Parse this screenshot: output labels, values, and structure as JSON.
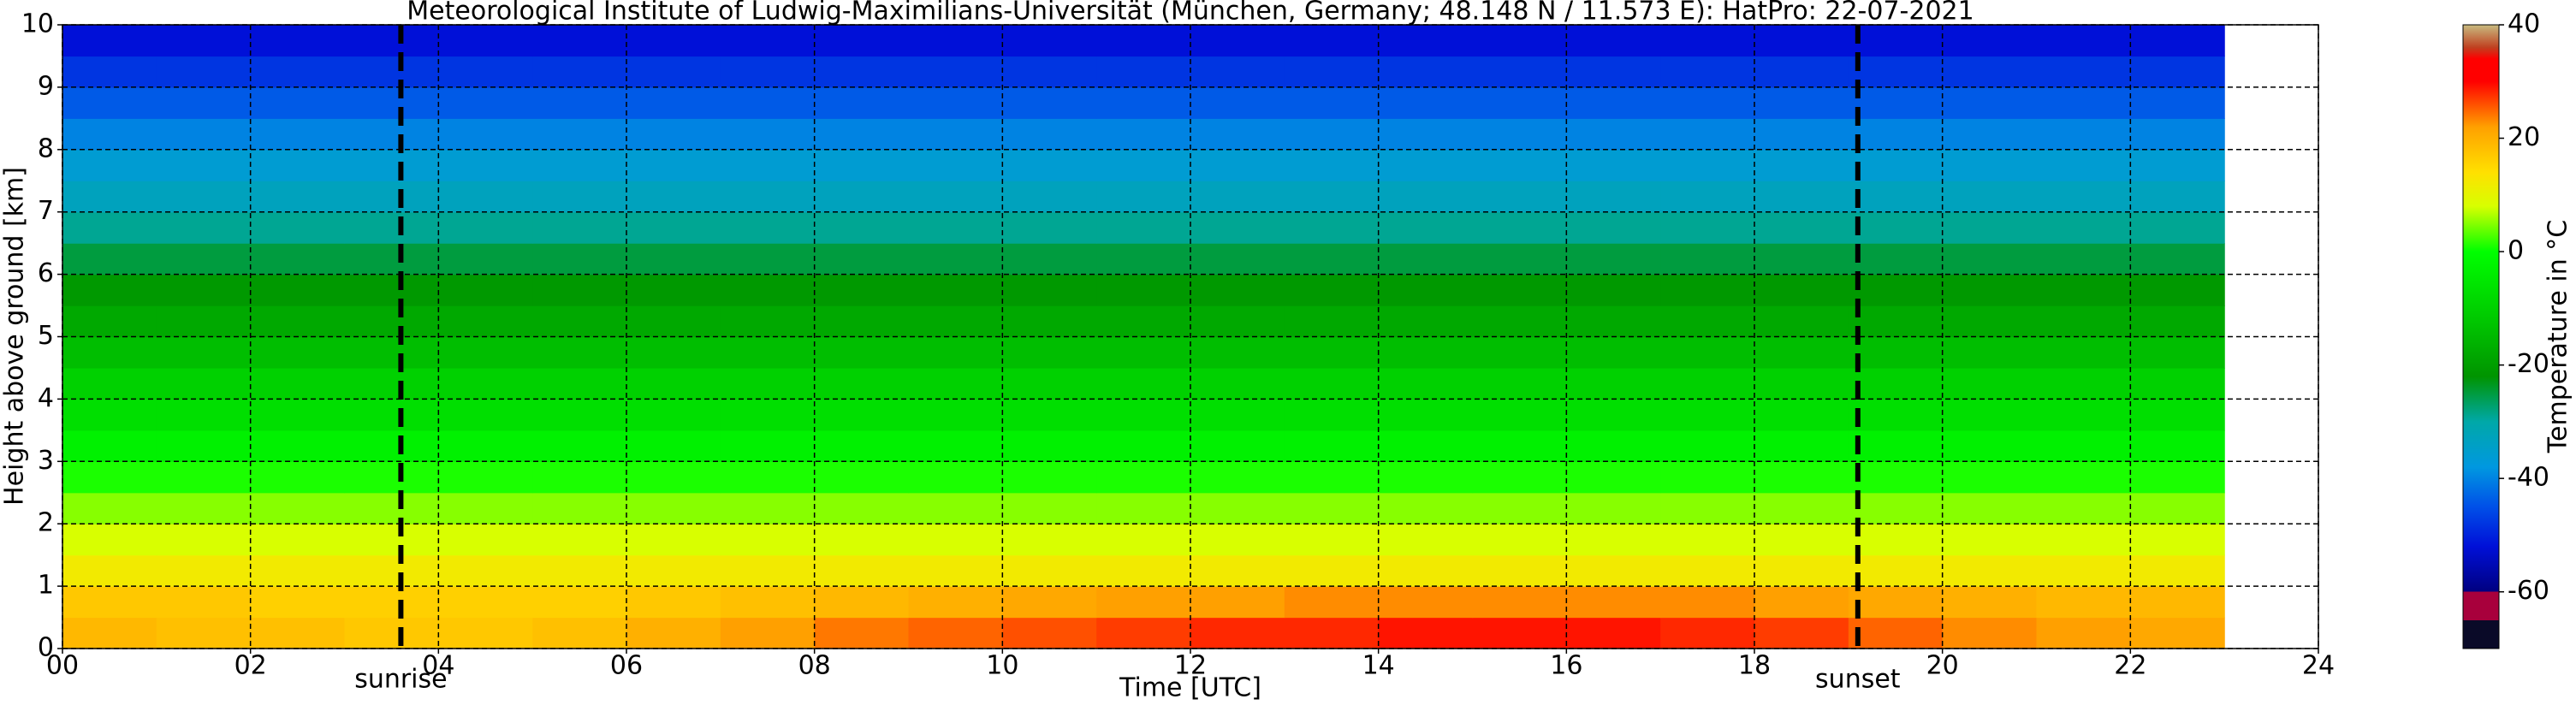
{
  "chart_data": {
    "type": "heatmap",
    "title": "Meteorological Institute of Ludwig-Maximilians-Universität (München, Germany; 48.148 N / 11.573 E):    HatPro: 22-07-2021",
    "xlabel": "Time [UTC]",
    "ylabel": "Height above ground [km]",
    "colorbar_label": "Temperature in °C",
    "xlim": [
      0,
      24
    ],
    "xticks": [
      {
        "value": 0,
        "label": "00"
      },
      {
        "value": 2,
        "label": "02"
      },
      {
        "value": 4,
        "label": "04"
      },
      {
        "value": 6,
        "label": "06"
      },
      {
        "value": 8,
        "label": "08"
      },
      10,
      12,
      14,
      16,
      18,
      20,
      22,
      24
    ],
    "ylim": [
      0,
      10
    ],
    "yticks": [
      0,
      1,
      2,
      3,
      4,
      5,
      6,
      7,
      8,
      9,
      10
    ],
    "clim": [
      -70,
      40
    ],
    "cticks": [
      -60,
      -40,
      -20,
      0,
      20,
      40
    ],
    "grid": true,
    "colorscale": [
      {
        "value": -70,
        "color": "#0a0a28"
      },
      {
        "value": -65,
        "color": "#0a0a28"
      },
      {
        "value": -65,
        "color": "#a8003c"
      },
      {
        "value": -60,
        "color": "#a8003c"
      },
      {
        "value": -60,
        "color": "#000080"
      },
      {
        "value": -52,
        "color": "#0010d8"
      },
      {
        "value": -45,
        "color": "#0050e8"
      },
      {
        "value": -38,
        "color": "#0098e0"
      },
      {
        "value": -30,
        "color": "#00a8a8"
      },
      {
        "value": -22,
        "color": "#009400"
      },
      {
        "value": -12,
        "color": "#00c800"
      },
      {
        "value": 0,
        "color": "#00ff00"
      },
      {
        "value": 8,
        "color": "#d8ff00"
      },
      {
        "value": 14,
        "color": "#ffe000"
      },
      {
        "value": 22,
        "color": "#ffa000"
      },
      {
        "value": 30,
        "color": "#ff0000"
      },
      {
        "value": 34,
        "color": "#ff0000"
      },
      {
        "value": 36,
        "color": "#c04020"
      },
      {
        "value": 40,
        "color": "#c8bc80"
      }
    ],
    "annotations": [
      {
        "label": "sunrise",
        "x": 3.6
      },
      {
        "label": "sunset",
        "x": 19.1
      }
    ],
    "x_edges": [
      0,
      1,
      2,
      3,
      4,
      5,
      6,
      7,
      8,
      9,
      10,
      11,
      12,
      13,
      14,
      15,
      16,
      17,
      18,
      19,
      20,
      21,
      22,
      23
    ],
    "y_edges": [
      0,
      0.5,
      1,
      1.5,
      2,
      2.5,
      3,
      3.5,
      4,
      4.5,
      5,
      5.5,
      6,
      6.5,
      7,
      7.5,
      8,
      8.5,
      9,
      9.5,
      10
    ],
    "values": [
      [
        19,
        18,
        18,
        17,
        17,
        18,
        20,
        22,
        24,
        25,
        26,
        27,
        28,
        28,
        29,
        29,
        29,
        28,
        27,
        25,
        23,
        22,
        21
      ],
      [
        17,
        17,
        16,
        16,
        16,
        16,
        17,
        18,
        19,
        20,
        21,
        22,
        22,
        23,
        23,
        23,
        23,
        23,
        22,
        21,
        20,
        19,
        19
      ],
      [
        12,
        12,
        12,
        12,
        12,
        12,
        12,
        12,
        12,
        12,
        12,
        12,
        12,
        12,
        12,
        12,
        12,
        12,
        12,
        12,
        12,
        12,
        12
      ],
      [
        8,
        8,
        8,
        8,
        8,
        8,
        8,
        8,
        8,
        8,
        8,
        8,
        8,
        8,
        8,
        8,
        8,
        8,
        8,
        8,
        8,
        8,
        8
      ],
      [
        5,
        5,
        5,
        5,
        5,
        5,
        5,
        5,
        5,
        5,
        5,
        5,
        5,
        5,
        5,
        5,
        5,
        5,
        5,
        5,
        5,
        5,
        5
      ],
      [
        1,
        1,
        1,
        1,
        1,
        1,
        1,
        1,
        1,
        1,
        1,
        1,
        1,
        1,
        1,
        1,
        1,
        1,
        1,
        1,
        1,
        1,
        1
      ],
      [
        -3,
        -3,
        -3,
        -3,
        -3,
        -3,
        -3,
        -3,
        -3,
        -3,
        -3,
        -3,
        -3,
        -3,
        -3,
        -3,
        -3,
        -3,
        -3,
        -3,
        -3,
        -3,
        -3
      ],
      [
        -7,
        -7,
        -7,
        -7,
        -7,
        -7,
        -7,
        -7,
        -7,
        -7,
        -7,
        -7,
        -7,
        -7,
        -7,
        -7,
        -7,
        -7,
        -7,
        -7,
        -7,
        -7,
        -7
      ],
      [
        -10,
        -10,
        -10,
        -10,
        -10,
        -10,
        -10,
        -10,
        -10,
        -10,
        -10,
        -10,
        -10,
        -10,
        -10,
        -10,
        -10,
        -10,
        -10,
        -10,
        -10,
        -10,
        -10
      ],
      [
        -14,
        -14,
        -14,
        -14,
        -14,
        -14,
        -14,
        -14,
        -14,
        -14,
        -14,
        -14,
        -14,
        -14,
        -14,
        -14,
        -14,
        -14,
        -14,
        -14,
        -14,
        -14,
        -14
      ],
      [
        -18,
        -18,
        -18,
        -18,
        -18,
        -18,
        -18,
        -18,
        -18,
        -18,
        -18,
        -18,
        -18,
        -18,
        -18,
        -18,
        -18,
        -18,
        -18,
        -18,
        -18,
        -18,
        -18
      ],
      [
        -21,
        -21,
        -21,
        -21,
        -21,
        -21,
        -21,
        -21,
        -21,
        -21,
        -21,
        -21,
        -21,
        -21,
        -21,
        -21,
        -21,
        -21,
        -21,
        -21,
        -21,
        -21,
        -21
      ],
      [
        -25,
        -25,
        -25,
        -25,
        -25,
        -25,
        -25,
        -25,
        -25,
        -25,
        -25,
        -25,
        -25,
        -25,
        -25,
        -25,
        -25,
        -25,
        -25,
        -25,
        -25,
        -25,
        -25
      ],
      [
        -29,
        -29,
        -29,
        -29,
        -29,
        -29,
        -29,
        -29,
        -29,
        -29,
        -29,
        -29,
        -29,
        -29,
        -29,
        -29,
        -29,
        -29,
        -29,
        -29,
        -29,
        -29,
        -29
      ],
      [
        -33,
        -33,
        -33,
        -33,
        -33,
        -33,
        -33,
        -33,
        -33,
        -33,
        -33,
        -33,
        -33,
        -33,
        -33,
        -33,
        -33,
        -33,
        -33,
        -33,
        -33,
        -33,
        -33
      ],
      [
        -36,
        -36,
        -36,
        -36,
        -36,
        -36,
        -36,
        -36,
        -36,
        -36,
        -36,
        -36,
        -36,
        -36,
        -36,
        -36,
        -36,
        -36,
        -36,
        -36,
        -36,
        -36,
        -36
      ],
      [
        -40,
        -40,
        -40,
        -40,
        -40,
        -40,
        -40,
        -40,
        -40,
        -40,
        -40,
        -40,
        -40,
        -40,
        -40,
        -40,
        -40,
        -40,
        -40,
        -40,
        -40,
        -40,
        -40
      ],
      [
        -44,
        -44,
        -44,
        -44,
        -44,
        -44,
        -44,
        -44,
        -44,
        -44,
        -44,
        -44,
        -44,
        -44,
        -44,
        -44,
        -44,
        -44,
        -44,
        -44,
        -44,
        -44,
        -44
      ],
      [
        -48,
        -48,
        -48,
        -48,
        -48,
        -48,
        -48,
        -48,
        -48,
        -48,
        -48,
        -48,
        -48,
        -48,
        -48,
        -48,
        -48,
        -48,
        -48,
        -48,
        -48,
        -48,
        -48
      ],
      [
        -52,
        -52,
        -52,
        -52,
        -52,
        -52,
        -52,
        -52,
        -52,
        -52,
        -52,
        -52,
        -52,
        -52,
        -52,
        -52,
        -52,
        -52,
        -52,
        -52,
        -52,
        -52,
        -52
      ]
    ]
  }
}
